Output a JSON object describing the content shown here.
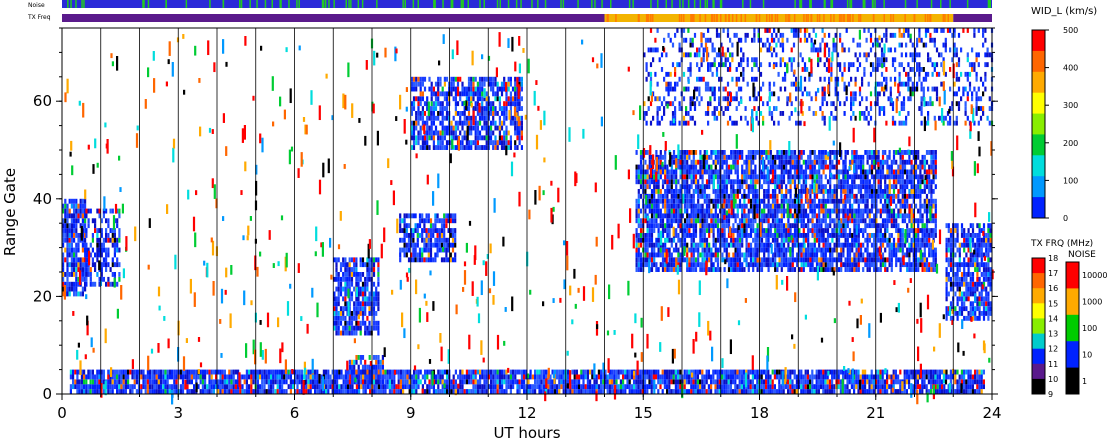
{
  "chart_data": {
    "type": "heatmap",
    "xlabel": "UT hours",
    "ylabel": "Range Gate",
    "xlim": [
      0,
      24
    ],
    "ylim": [
      0,
      75
    ],
    "xticks": [
      "0",
      "3",
      "6",
      "9",
      "12",
      "15",
      "18",
      "21",
      "24"
    ],
    "yticks": [
      "0",
      "20",
      "40",
      "60"
    ],
    "grid": "vertical hour lines",
    "top_strips": {
      "noise_label": "Noise",
      "txfreq_label": "TX Freq",
      "noise_color": "#2a2ad8",
      "noise_flecks_color": "#22c822",
      "txfreq_segments": [
        {
          "start": 0,
          "end": 14.0,
          "color": "#5a1a8c"
        },
        {
          "start": 14.0,
          "end": 23.0,
          "color": "#f3b400"
        },
        {
          "start": 23.0,
          "end": 24.0,
          "color": "#5a1a8c"
        }
      ]
    },
    "width_colorbar": {
      "title": "WID_L (km/s)",
      "range": [
        0,
        500
      ],
      "ticks": [
        "500",
        "400",
        "300",
        "200",
        "100",
        "0"
      ],
      "colors": [
        "#ff0000",
        "#ff6600",
        "#ffaa00",
        "#ffff00",
        "#88ee00",
        "#00cc33",
        "#00dddd",
        "#0099ff",
        "#0022ff"
      ]
    },
    "txfreq_colorbar": {
      "title": "TX FRQ (MHz)",
      "ticks": [
        "18",
        "17",
        "16",
        "15",
        "14",
        "13",
        "12",
        "11",
        "10",
        "9"
      ],
      "colors": [
        "#ff0000",
        "#ff6600",
        "#ffaa00",
        "#ffff00",
        "#88ee00",
        "#00cccc",
        "#0022ff",
        "#5a1a8c",
        "#000000"
      ]
    },
    "noise_colorbar": {
      "title": "NOISE",
      "ticks": [
        "10000",
        "1000",
        "100",
        "10",
        "1"
      ],
      "colors": [
        "#ff0000",
        "#ffaa00",
        "#00cc00",
        "#0022ff",
        "#000000"
      ]
    },
    "scatter_regions": [
      {
        "name": "gate-0 band",
        "x": [
          0.2,
          23.8
        ],
        "y": [
          0,
          5
        ],
        "density": 0.9
      },
      {
        "name": "early blob",
        "x": [
          0.0,
          0.6
        ],
        "y": [
          20,
          40
        ],
        "density": 0.85
      },
      {
        "name": "early cluster 2",
        "x": [
          0.6,
          1.5
        ],
        "y": [
          22,
          38
        ],
        "density": 0.5
      },
      {
        "name": "diagonal band",
        "x": [
          7.0,
          8.2
        ],
        "y": [
          12,
          28
        ],
        "density": 0.8
      },
      {
        "name": "gate-5 blob",
        "x": [
          7.4,
          8.3
        ],
        "y": [
          2,
          8
        ],
        "density": 0.8
      },
      {
        "name": "mid blob",
        "x": [
          8.7,
          10.2
        ],
        "y": [
          27,
          37
        ],
        "density": 0.75
      },
      {
        "name": "high band",
        "x": [
          9.0,
          11.9
        ],
        "y": [
          50,
          65
        ],
        "density": 0.7
      },
      {
        "name": "dense echo region",
        "x": [
          14.8,
          22.6
        ],
        "y": [
          25,
          50
        ],
        "density": 0.8
      },
      {
        "name": "late blob",
        "x": [
          22.8,
          24.0
        ],
        "y": [
          15,
          35
        ],
        "density": 0.75
      },
      {
        "name": "upper sparse",
        "x": [
          15.0,
          24.0
        ],
        "y": [
          55,
          75
        ],
        "density": 0.3
      }
    ]
  }
}
